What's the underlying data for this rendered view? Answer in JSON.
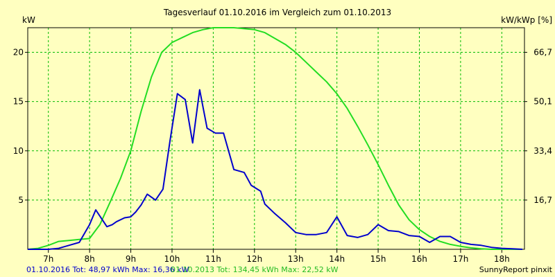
{
  "chart_data": {
    "type": "line",
    "title": "Tagesverlauf 01.10.2016 im Vergleich zum 01.10.2013",
    "ylabel_left": "kW",
    "ylabel_right": "kW/kWp [%]",
    "x_ticks": [
      "7h",
      "8h",
      "9h",
      "10h",
      "11h",
      "12h",
      "13h",
      "14h",
      "15h",
      "16h",
      "17h",
      "18h"
    ],
    "y_ticks_left": [
      "5",
      "10",
      "15",
      "20"
    ],
    "y_ticks_right": [
      "16,7",
      "33,4",
      "50,1",
      "66,7"
    ],
    "xlim": [
      6.5,
      18.55
    ],
    "ylim": [
      0,
      22.5
    ],
    "grid": true,
    "series": [
      {
        "name": "01.10.2016",
        "color": "#0000cc",
        "x": [
          6.5,
          6.8,
          7.0,
          7.25,
          7.5,
          7.75,
          8.0,
          8.15,
          8.42,
          8.55,
          8.65,
          8.85,
          9.0,
          9.12,
          9.25,
          9.4,
          9.6,
          9.78,
          9.95,
          10.13,
          10.32,
          10.5,
          10.67,
          10.85,
          11.05,
          11.25,
          11.5,
          11.75,
          11.92,
          12.15,
          12.25,
          12.5,
          12.75,
          13.0,
          13.25,
          13.5,
          13.75,
          14.0,
          14.25,
          14.5,
          14.75,
          15.0,
          15.25,
          15.5,
          15.75,
          16.0,
          16.25,
          16.5,
          16.75,
          17.0,
          17.25,
          17.5,
          17.75,
          18.0,
          18.25,
          18.5
        ],
        "y": [
          0,
          0,
          0,
          0.1,
          0.4,
          0.7,
          2.5,
          4.0,
          2.3,
          2.5,
          2.8,
          3.2,
          3.3,
          3.8,
          4.5,
          5.6,
          5.0,
          6.1,
          11.0,
          15.8,
          15.2,
          10.8,
          16.2,
          12.3,
          11.8,
          11.8,
          8.1,
          7.8,
          6.5,
          5.9,
          4.6,
          3.6,
          2.7,
          1.7,
          1.5,
          1.5,
          1.7,
          3.3,
          1.4,
          1.2,
          1.5,
          2.5,
          1.9,
          1.8,
          1.4,
          1.3,
          0.7,
          1.3,
          1.3,
          0.7,
          0.5,
          0.4,
          0.2,
          0.1,
          0.05,
          0
        ]
      },
      {
        "name": "01.10.2013",
        "color": "#22dd22",
        "x": [
          6.5,
          6.75,
          7.0,
          7.25,
          7.5,
          7.75,
          8.0,
          8.25,
          8.5,
          8.75,
          9.0,
          9.25,
          9.5,
          9.75,
          10.0,
          10.25,
          10.5,
          10.75,
          11.0,
          11.25,
          11.5,
          11.75,
          12.0,
          12.25,
          12.5,
          12.75,
          13.0,
          13.25,
          13.5,
          13.75,
          14.0,
          14.25,
          14.5,
          14.75,
          15.0,
          15.25,
          15.5,
          15.75,
          16.0,
          16.25,
          16.5,
          16.75,
          17.0,
          17.25,
          17.5,
          17.75,
          18.0,
          18.25,
          18.5
        ],
        "y": [
          0,
          0.1,
          0.4,
          0.8,
          0.9,
          1.0,
          1.1,
          2.5,
          4.8,
          7.2,
          10.0,
          14.0,
          17.5,
          20.0,
          21.0,
          21.5,
          22.0,
          22.3,
          22.5,
          22.5,
          22.5,
          22.4,
          22.3,
          22.0,
          21.4,
          20.8,
          20.0,
          19.0,
          18.0,
          17.0,
          15.8,
          14.3,
          12.5,
          10.6,
          8.6,
          6.5,
          4.5,
          3.0,
          2.0,
          1.3,
          0.8,
          0.5,
          0.3,
          0.15,
          0.05,
          0,
          0,
          0,
          0
        ]
      }
    ]
  },
  "footer": {
    "series1_label": "01.10.2016 Tot: 48,97 kWh Max: 16,36 kW",
    "series2_label": "01.10.2013 Tot: 134,45 kWh Max: 22,52 kW",
    "credit": "SunnyReport pinxit"
  }
}
